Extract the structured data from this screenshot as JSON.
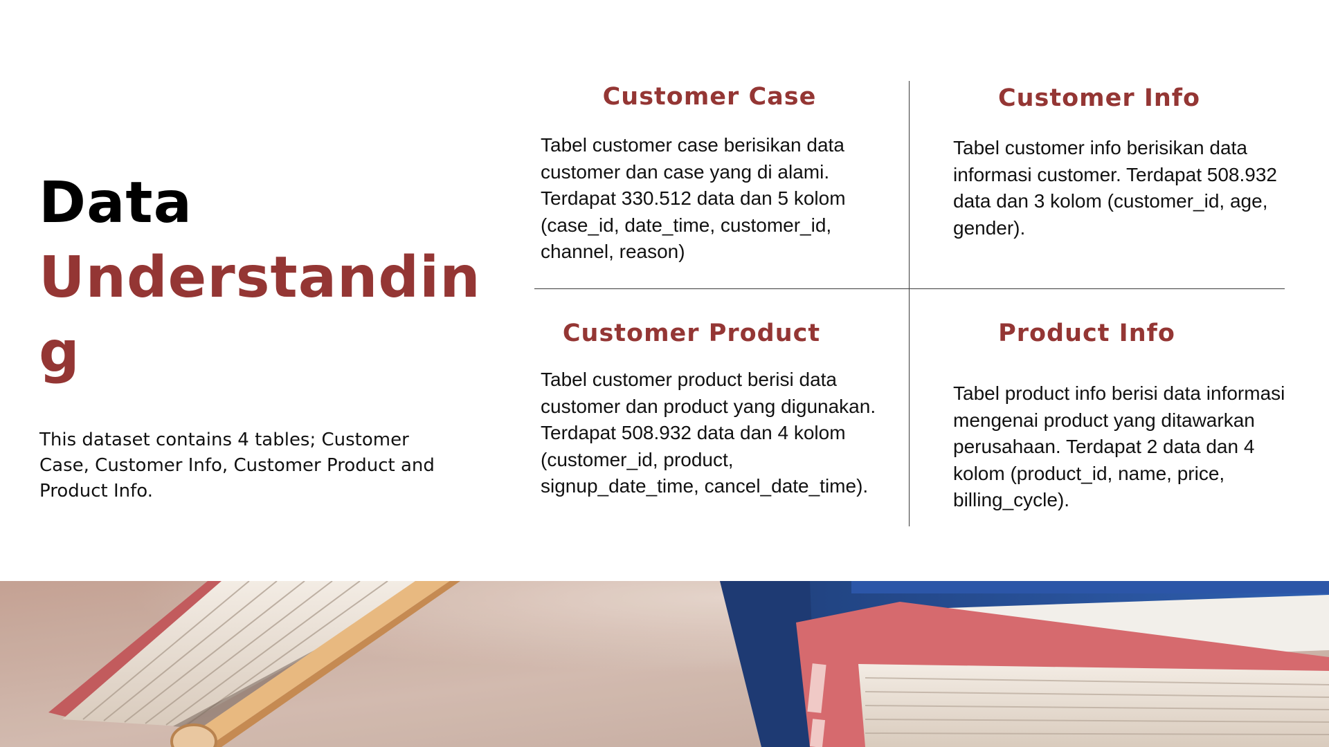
{
  "title": {
    "line1": "Data",
    "line2": "Understanding",
    "line1_color": "#000000",
    "line2_color": "#943634"
  },
  "intro": "This dataset contains 4 tables; Customer Case, Customer Info, Customer Product and Product Info.",
  "accent_color": "#943634",
  "cards": [
    {
      "title": "Customer Case",
      "description": "Tabel customer case berisikan data customer dan case yang di alami. Terdapat 330.512 data dan 5 kolom (case_id, date_time, customer_id, channel, reason)"
    },
    {
      "title": "Customer Info",
      "description": "Tabel customer info berisikan data informasi customer. Terdapat 508.932 data dan 3 kolom (customer_id, age, gender)."
    },
    {
      "title": "Customer Product",
      "description": "Tabel customer product berisi data customer dan product yang digunakan. Terdapat 508.932 data dan 4 kolom (customer_id, product, signup_date_time, cancel_date_time)."
    },
    {
      "title": "Product Info",
      "description": "Tabel product info berisi data informasi mengenai product yang ditawarkan perusahaan. Terdapat 2 data dan 4 kolom (product_id, name, price, billing_cycle)."
    }
  ],
  "photo": {
    "icon": "books-photo"
  }
}
